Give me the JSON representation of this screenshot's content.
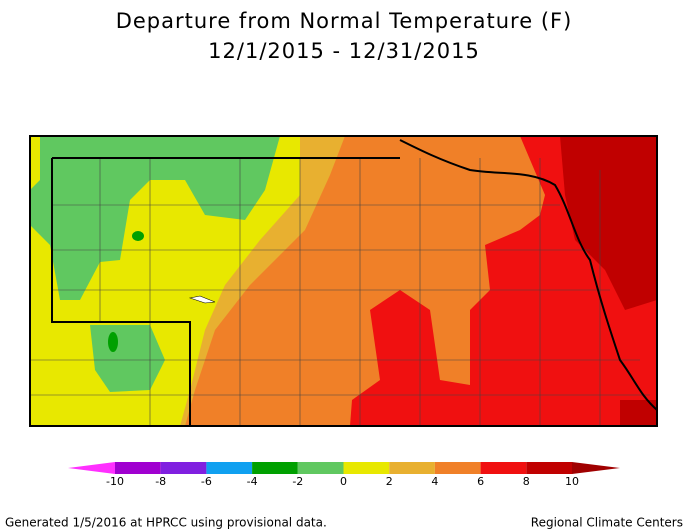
{
  "title": "Departure from Normal Temperature (F)",
  "subtitle": "12/1/2015 - 12/31/2015",
  "legend": {
    "below_color": "#ff30ff",
    "colors": [
      "#a000d0",
      "#8020e0",
      "#10a0f0",
      "#00a000",
      "#60c860",
      "#e8e800",
      "#e8b030",
      "#f08028",
      "#f01010",
      "#c00000"
    ],
    "above_color": "#a00000",
    "ticks": [
      -10,
      -8,
      -6,
      -4,
      -2,
      0,
      2,
      4,
      6,
      8,
      10
    ]
  },
  "footer": {
    "left": "Generated 1/5/2016 at HPRCC using provisional data.",
    "right": "Regional Climate Centers"
  }
}
